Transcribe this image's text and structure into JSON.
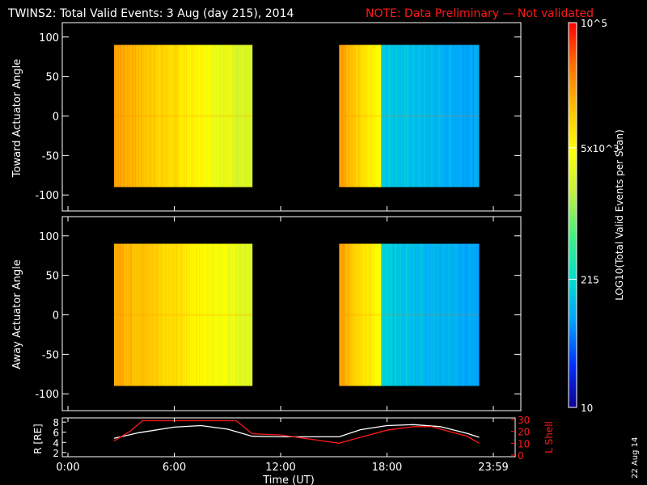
{
  "header": {
    "title": "TWINS2: Total Valid Events:  3 Aug (day 215), 2014",
    "note": "NOTE: Data Preliminary — Not validated",
    "note_color": "#ff1a1a"
  },
  "date_stamp": "22 Aug 14",
  "colorbar": {
    "label": "LOG10(Total Valid Events per Scan)",
    "ticks": [
      "10",
      "215",
      "5x10^3",
      "10^5"
    ],
    "tick_values": [
      10,
      215,
      5000,
      100000
    ],
    "range": [
      10,
      100000
    ],
    "scale": "log",
    "colormap": [
      "#100090",
      "#0030ff",
      "#00a0ff",
      "#00e0d0",
      "#40f080",
      "#c0f040",
      "#ffff00",
      "#ffc000",
      "#ff7000",
      "#ff0000"
    ]
  },
  "chart_data": [
    {
      "type": "heatmap",
      "name": "toward",
      "ylabel": "Toward Actuator Angle",
      "ylim": [
        -110,
        110
      ],
      "yticks": [
        "100",
        "50",
        "0",
        "-50",
        "-100"
      ],
      "xlim": [
        0,
        24
      ],
      "segments": [
        {
          "start": 2.6,
          "end": 10.4,
          "level_start": 0.83,
          "level_end": 0.58
        },
        {
          "start": 15.3,
          "end": 23.2,
          "level_start": 0.82,
          "level_end": 0.24
        }
      ]
    },
    {
      "type": "heatmap",
      "name": "away",
      "ylabel": "Away Actuator Angle",
      "ylim": [
        -110,
        110
      ],
      "yticks": [
        "100",
        "50",
        "0",
        "-50",
        "-100"
      ],
      "xlim": [
        0,
        24
      ],
      "segments": [
        {
          "start": 2.6,
          "end": 10.4,
          "level_start": 0.82,
          "level_end": 0.6
        },
        {
          "start": 15.3,
          "end": 23.2,
          "level_start": 0.82,
          "level_end": 0.24
        }
      ]
    },
    {
      "type": "line",
      "xlim": [
        0,
        24
      ],
      "xticks": [
        "0:00",
        "6:00",
        "12:00",
        "18:00",
        "23:59"
      ],
      "xlabel": "Time (UT)",
      "left_axis": {
        "label": "R [RE]",
        "ticks": [
          "8",
          "6",
          "4",
          "2"
        ],
        "ylim": [
          1.5,
          8.5
        ]
      },
      "right_axis": {
        "label": "L Shell",
        "ticks": [
          "30",
          "20",
          "10",
          "0"
        ],
        "ylim": [
          0,
          30
        ],
        "color": "#ff1a1a"
      },
      "series": [
        {
          "axis": "left",
          "color": "#ffffff",
          "x": [
            2.6,
            4,
            6,
            7.5,
            9,
            10.4,
            12,
            14,
            15.3,
            16.5,
            18,
            19.5,
            21,
            22.5,
            23.2
          ],
          "y": [
            4.8,
            5.9,
            7.0,
            7.3,
            6.6,
            5.2,
            5.1,
            5.1,
            5.1,
            6.5,
            7.3,
            7.5,
            7.1,
            5.8,
            5.0
          ]
        },
        {
          "axis": "right",
          "color": "#ff1a1a",
          "x": [
            2.6,
            3.5,
            4.2,
            9.5,
            10.4,
            12,
            15.3,
            16.5,
            18,
            19.5,
            20.5,
            21.5,
            22.5,
            23.2
          ],
          "y": [
            12,
            20,
            29,
            29,
            18,
            17,
            10,
            15,
            21,
            24,
            24,
            20,
            16,
            10
          ]
        }
      ]
    }
  ]
}
